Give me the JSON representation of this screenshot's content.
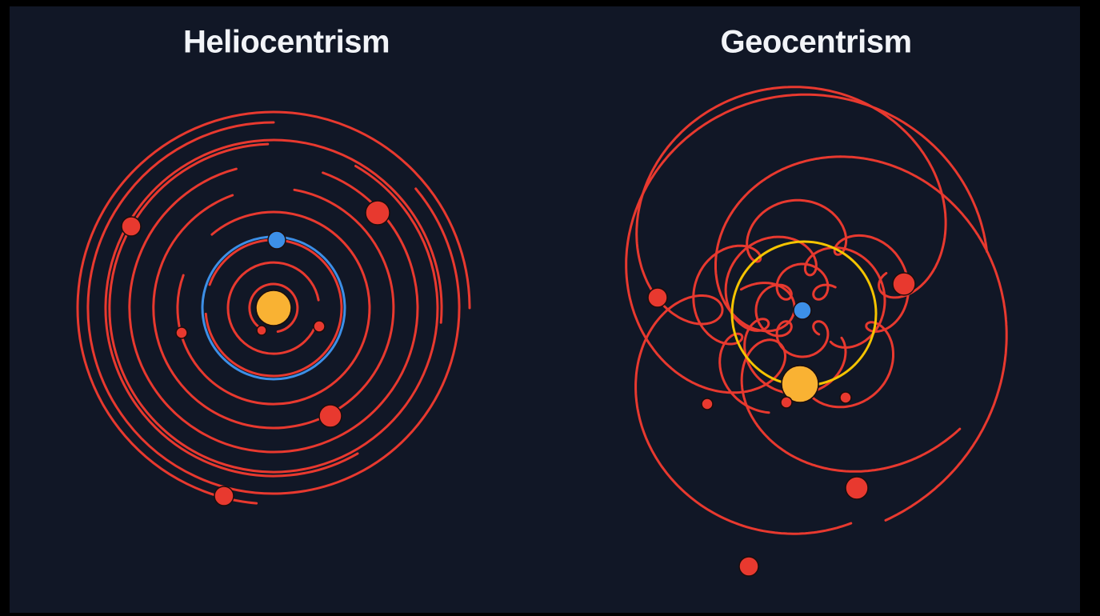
{
  "panels": [
    {
      "title": "Heliocentrism"
    },
    {
      "title": "Geocentrism"
    }
  ]
}
